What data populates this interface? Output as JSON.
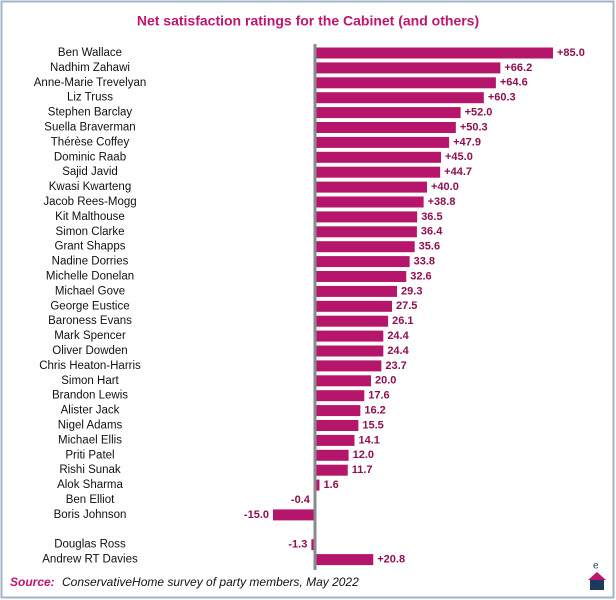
{
  "chart_data": {
    "type": "hbar",
    "title": "Net satisfaction ratings for the Cabinet (and others)",
    "categories": [
      "Ben Wallace",
      "Nadhim Zahawi",
      "Anne-Marie Trevelyan",
      "Liz Truss",
      "Stephen Barclay",
      "Suella Braverman",
      "Thérèse Coffey",
      "Dominic Raab",
      "Sajid Javid",
      "Kwasi Kwarteng",
      "Jacob Rees-Mogg",
      "Kit Malthouse",
      "Simon Clarke",
      "Grant Shapps",
      "Nadine Dorries",
      "Michelle Donelan",
      "Michael Gove",
      "George Eustice",
      "Baroness Evans",
      "Mark Spencer",
      "Oliver Dowden",
      "Chris Heaton-Harris",
      "Simon Hart",
      "Brandon Lewis",
      "Alister Jack",
      "Nigel Adams",
      "Michael Ellis",
      "Priti Patel",
      "Rishi Sunak",
      "Alok Sharma",
      "Ben Elliot",
      "Boris Johnson",
      null,
      "Douglas Ross",
      "Andrew RT Davies"
    ],
    "values": [
      85.0,
      66.2,
      64.6,
      60.3,
      52.0,
      50.3,
      47.9,
      45.0,
      44.7,
      40.0,
      38.8,
      36.5,
      36.4,
      35.6,
      33.8,
      32.6,
      29.3,
      27.5,
      26.1,
      24.4,
      24.4,
      23.7,
      20.0,
      17.6,
      16.2,
      15.5,
      14.1,
      12.0,
      11.7,
      1.6,
      -0.4,
      -15.0,
      null,
      -1.3,
      20.8
    ],
    "value_labels": [
      "+85.0",
      "+66.2",
      "+64.6",
      "+60.3",
      "+52.0",
      "+50.3",
      "+47.9",
      "+45.0",
      "+44.7",
      "+40.0",
      "+38.8",
      "36.5",
      "36.4",
      "35.6",
      "33.8",
      "32.6",
      "29.3",
      "27.5",
      "26.1",
      "24.4",
      "24.4",
      "23.7",
      "20.0",
      "17.6",
      "16.2",
      "15.5",
      "14.1",
      "12.0",
      "11.7",
      "1.6",
      "-0.4",
      "-15.0",
      null,
      "-1.3",
      "+20.8"
    ],
    "color": "#b5166b",
    "xlim": [
      -30,
      100
    ],
    "source_label": "Source:",
    "source": "ConservativeHome survey of party members, May 2022"
  }
}
